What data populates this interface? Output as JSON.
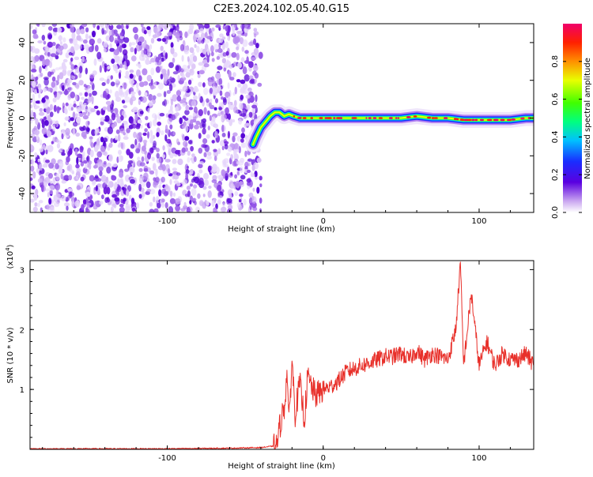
{
  "title": "C2E3.2024.102.05.40.G15",
  "colorbar": {
    "label": "Normalized spectral amplitude",
    "ticks": [
      {
        "value": 0.0,
        "label": "0.0"
      },
      {
        "value": 0.2,
        "label": "0.2"
      },
      {
        "value": 0.4,
        "label": "0.4"
      },
      {
        "value": 0.6,
        "label": "0.6"
      },
      {
        "value": 0.8,
        "label": "0.8"
      }
    ],
    "range": [
      0,
      1
    ]
  },
  "chart_data": [
    {
      "type": "heatmap",
      "xlabel": "Height of straight line (km)",
      "ylabel": "Frequency (Hz)",
      "xlim": [
        -188,
        135
      ],
      "ylim": [
        -50,
        50
      ],
      "x_ticks": [
        {
          "value": -100,
          "label": "-100"
        },
        {
          "value": 0,
          "label": "0"
        },
        {
          "value": 100,
          "label": "100"
        }
      ],
      "y_ticks": [
        {
          "value": -40,
          "label": "-40"
        },
        {
          "value": -20,
          "label": "-20"
        },
        {
          "value": 0,
          "label": "0"
        },
        {
          "value": 20,
          "label": "20"
        },
        {
          "value": 40,
          "label": "40"
        }
      ],
      "noise_region_x": [
        -188,
        -40
      ],
      "ridge": {
        "x": [
          -45,
          -43,
          -40,
          -37,
          -34,
          -31,
          -28,
          -25,
          -22,
          -19,
          -15,
          -10,
          -5,
          0,
          10,
          20,
          30,
          40,
          50,
          60,
          70,
          80,
          90,
          100,
          110,
          120,
          130,
          135
        ],
        "frequency": [
          -14,
          -10,
          -5,
          -2,
          1,
          3,
          3,
          1,
          2,
          1,
          0,
          0,
          0,
          0,
          0,
          0,
          0,
          0,
          0,
          1,
          0,
          0,
          -1,
          -1,
          -1,
          -1,
          0,
          0
        ]
      }
    },
    {
      "type": "line",
      "xlabel": "Height of straight line (km)",
      "ylabel": "SNR (10 * v/v)",
      "y_multiplier_label": "(x10",
      "y_multiplier_exp": "4",
      "xlim": [
        -188,
        135
      ],
      "ylim": [
        0,
        3.15
      ],
      "color": "#e8302a",
      "x_ticks": [
        {
          "value": -100,
          "label": "-100"
        },
        {
          "value": 0,
          "label": "0"
        },
        {
          "value": 100,
          "label": "100"
        }
      ],
      "y_ticks": [
        {
          "value": 1,
          "label": "1"
        },
        {
          "value": 2,
          "label": "2"
        },
        {
          "value": 3,
          "label": "3"
        }
      ],
      "series": [
        {
          "x": [
            -188,
            -150,
            -100,
            -60,
            -40,
            -30,
            -27,
            -25,
            -23,
            -22,
            -20,
            -18,
            -15,
            -12,
            -10,
            -5,
            0,
            5,
            10,
            15,
            20,
            25,
            30,
            35,
            40,
            45,
            50,
            55,
            60,
            65,
            70,
            75,
            80,
            85,
            88,
            90,
            95,
            100,
            105,
            110,
            115,
            120,
            125,
            130,
            135
          ],
          "y": [
            0.0,
            0.0,
            0.0,
            0.01,
            0.02,
            0.05,
            0.5,
            0.7,
            1.3,
            0.4,
            1.5,
            0.6,
            1.1,
            0.5,
            1.2,
            0.9,
            1.0,
            1.05,
            1.15,
            1.3,
            1.35,
            1.4,
            1.45,
            1.5,
            1.55,
            1.55,
            1.6,
            1.5,
            1.65,
            1.5,
            1.6,
            1.55,
            1.5,
            2.0,
            3.1,
            1.4,
            2.6,
            1.4,
            1.8,
            1.4,
            1.6,
            1.5,
            1.5,
            1.6,
            1.4
          ]
        }
      ]
    }
  ]
}
